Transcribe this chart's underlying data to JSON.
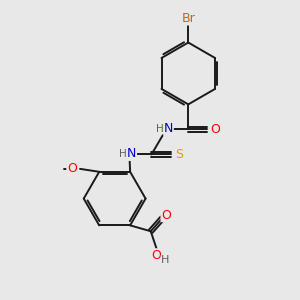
{
  "bg_color": "#e8e8e8",
  "atom_colors": {
    "C": "#000000",
    "H": "#606060",
    "N": "#0000cd",
    "O": "#ff0000",
    "S": "#ccaa00",
    "Br": "#cc6600"
  },
  "bond_color": "#1a1a1a",
  "font_size": 8.5,
  "fig_size": [
    3.0,
    3.0
  ],
  "dpi": 100,
  "lw": 1.4
}
